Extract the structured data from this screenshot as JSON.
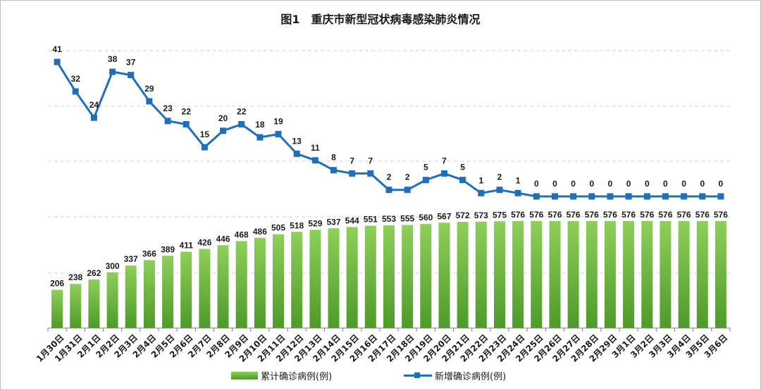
{
  "chart_data": {
    "type": "bar+line",
    "title": "图1　重庆市新型冠状病毒感染肺炎情况",
    "categories": [
      "1月30日",
      "1月31日",
      "2月1日",
      "2月2日",
      "2月3日",
      "2月4日",
      "2月5日",
      "2月6日",
      "2月7日",
      "2月8日",
      "2月9日",
      "2月10日",
      "2月11日",
      "2月12日",
      "2月13日",
      "2月14日",
      "2月15日",
      "2月16日",
      "2月17日",
      "2月18日",
      "2月19日",
      "2月20日",
      "2月21日",
      "2月22日",
      "2月23日",
      "2月24日",
      "2月25日",
      "2月26日",
      "2月27日",
      "2月28日",
      "2月29日",
      "3月1日",
      "3月2日",
      "3月3日",
      "3月4日",
      "3月5日",
      "3月6日"
    ],
    "series": [
      {
        "name": "累计确诊病例(例)",
        "type": "bar",
        "color": "#6ab43e",
        "values": [
          206,
          238,
          262,
          300,
          337,
          366,
          389,
          411,
          426,
          446,
          468,
          486,
          505,
          518,
          529,
          537,
          544,
          551,
          553,
          555,
          560,
          567,
          572,
          573,
          575,
          576,
          576,
          576,
          576,
          576,
          576,
          576,
          576,
          576,
          576,
          576,
          576
        ]
      },
      {
        "name": "新增确诊病例(例)",
        "type": "line",
        "color": "#1f6fba",
        "values": [
          41,
          32,
          24,
          38,
          37,
          29,
          23,
          22,
          15,
          20,
          22,
          18,
          19,
          13,
          11,
          8,
          7,
          7,
          2,
          2,
          5,
          7,
          5,
          1,
          2,
          1,
          0,
          0,
          0,
          0,
          0,
          0,
          0,
          0,
          0,
          0,
          0
        ]
      }
    ],
    "legend": "bottom",
    "grid": true
  }
}
